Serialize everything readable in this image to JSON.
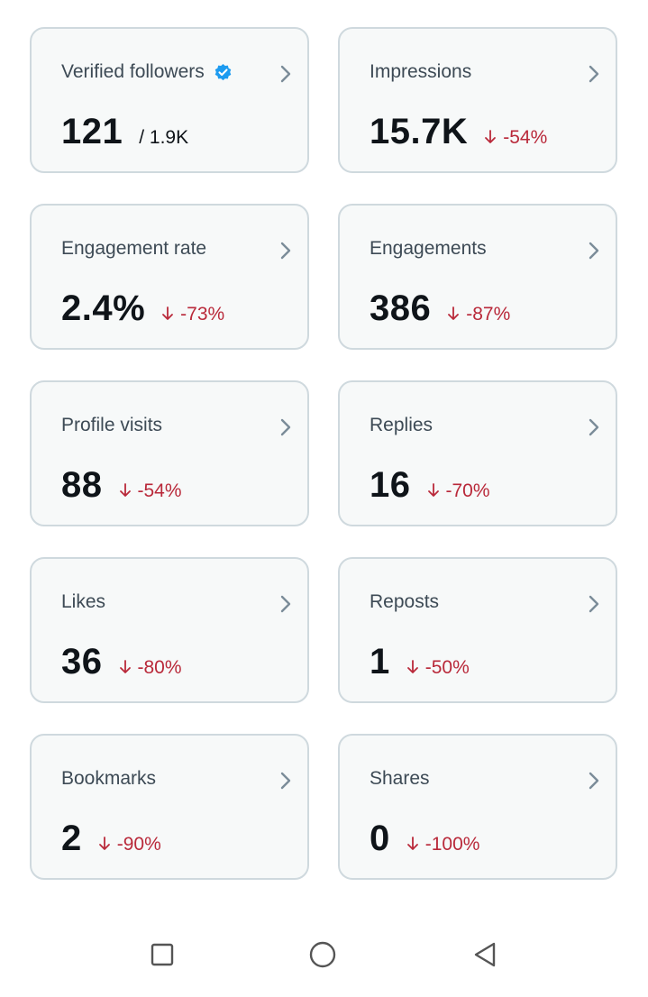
{
  "colors": {
    "card_bg": "#f7f9f9",
    "card_border": "#cfd9de",
    "title": "#3d4a55",
    "value": "#0f1419",
    "negative": "#b9293a",
    "verified": "#1d9bf0",
    "chevron": "#7b8c99",
    "nav_icon": "#555555"
  },
  "metrics": [
    {
      "title": "Verified followers",
      "value": "121",
      "sub": "/ 1.9K",
      "verified_icon": "verified-badge-icon"
    },
    {
      "title": "Impressions",
      "value": "15.7K",
      "delta": "-54%"
    },
    {
      "title": "Engagement rate",
      "value": "2.4%",
      "delta": "-73%"
    },
    {
      "title": "Engagements",
      "value": "386",
      "delta": "-87%"
    },
    {
      "title": "Profile visits",
      "value": "88",
      "delta": "-54%"
    },
    {
      "title": "Replies",
      "value": "16",
      "delta": "-70%"
    },
    {
      "title": "Likes",
      "value": "36",
      "delta": "-80%"
    },
    {
      "title": "Reposts",
      "value": "1",
      "delta": "-50%"
    },
    {
      "title": "Bookmarks",
      "value": "2",
      "delta": "-90%"
    },
    {
      "title": "Shares",
      "value": "0",
      "delta": "-100%"
    }
  ],
  "navbar": {
    "icons": [
      "recents-square-icon",
      "home-circle-icon",
      "back-triangle-icon"
    ]
  }
}
